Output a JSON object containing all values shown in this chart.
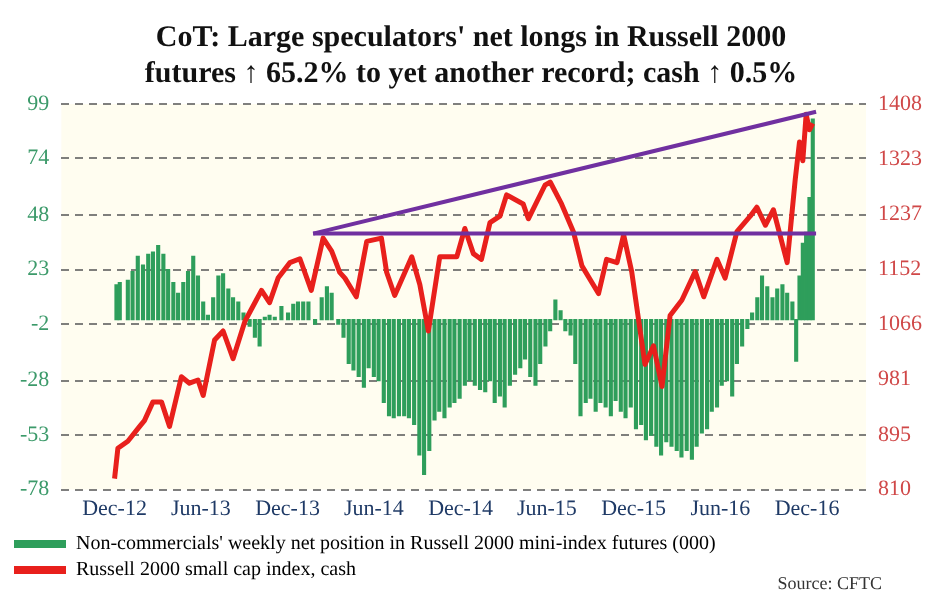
{
  "chart_data": {
    "type": "bar",
    "title": "CoT: Large speculators' net longs in Russell 2000 futures ↑ 65.2% to yet another record; cash ↑ 0.5%",
    "annotations": [
      "Source: CFTC"
    ],
    "xlim": [
      "2012-11-13",
      "2016-12-31"
    ],
    "xticks": [
      {
        "value": "2012-12-01",
        "label": "Dec-12"
      },
      {
        "value": "2013-06-01",
        "label": "Jun-13"
      },
      {
        "value": "2013-12-01",
        "label": "Dec-13"
      },
      {
        "value": "2014-06-01",
        "label": "Jun-14"
      },
      {
        "value": "2014-12-01",
        "label": "Dec-14"
      },
      {
        "value": "2015-06-01",
        "label": "Jun-15"
      },
      {
        "value": "2015-12-01",
        "label": "Dec-15"
      },
      {
        "value": "2016-06-01",
        "label": "Jun-16"
      },
      {
        "value": "2016-12-01",
        "label": "Dec-16"
      }
    ],
    "ylim": [
      -78,
      99
    ],
    "yticks": [
      -78,
      -53,
      -28,
      -2,
      23,
      48,
      74,
      99
    ],
    "y2lim": [
      810,
      1408
    ],
    "y2ticks": [
      810,
      895,
      981,
      1066,
      1152,
      1237,
      1323,
      1408
    ],
    "grid": "y",
    "legend": "bottom left",
    "series": [
      {
        "name": "Non-commercials' weekly net position in Russell 2000 mini-index futures (000)",
        "color": "#2e9e5b",
        "axis": "y",
        "x": [
          "2012-12-05",
          "2012-12-12",
          "2012-12-29",
          "2013-01-08",
          "2013-01-19",
          "2013-01-30",
          "2013-02-10",
          "2013-02-20",
          "2013-03-03",
          "2013-03-14",
          "2013-03-24",
          "2013-04-04",
          "2013-04-14",
          "2013-04-25",
          "2013-05-05",
          "2013-05-16",
          "2013-05-26",
          "2013-06-06",
          "2013-06-16",
          "2013-06-27",
          "2013-07-08",
          "2013-07-18",
          "2013-07-29",
          "2013-08-08",
          "2013-08-19",
          "2013-08-30",
          "2013-09-12",
          "2013-09-23",
          "2013-10-03",
          "2013-10-14",
          "2013-10-24",
          "2013-11-04",
          "2013-11-18",
          "2013-12-02",
          "2013-12-13",
          "2013-12-23",
          "2014-01-03",
          "2014-01-14",
          "2014-01-28",
          "2014-02-11",
          "2014-02-22",
          "2014-03-04",
          "2014-03-18",
          "2014-03-29",
          "2014-04-09",
          "2014-04-19",
          "2014-04-30",
          "2014-05-11",
          "2014-05-21",
          "2014-06-01",
          "2014-06-11",
          "2014-06-22",
          "2014-07-03",
          "2014-07-13",
          "2014-07-24",
          "2014-08-04",
          "2014-08-14",
          "2014-08-25",
          "2014-09-05",
          "2014-09-15",
          "2014-09-26",
          "2014-10-07",
          "2014-10-17",
          "2014-10-28",
          "2014-11-08",
          "2014-11-18",
          "2014-11-29",
          "2014-12-10",
          "2014-12-20",
          "2014-12-31",
          "2015-01-11",
          "2015-01-22",
          "2015-02-01",
          "2015-02-11",
          "2015-02-22",
          "2015-03-04",
          "2015-03-15",
          "2015-03-26",
          "2015-04-06",
          "2015-04-16",
          "2015-04-27",
          "2015-05-08",
          "2015-05-18",
          "2015-05-29",
          "2015-06-08",
          "2015-06-19",
          "2015-06-30",
          "2015-07-10",
          "2015-07-21",
          "2015-07-31",
          "2015-08-11",
          "2015-08-22",
          "2015-09-01",
          "2015-09-12",
          "2015-09-22",
          "2015-10-03",
          "2015-10-14",
          "2015-10-24",
          "2015-11-04",
          "2015-11-14",
          "2015-11-25",
          "2015-12-06",
          "2015-12-17",
          "2015-12-27",
          "2016-01-07",
          "2016-01-18",
          "2016-01-28",
          "2016-02-08",
          "2016-02-19",
          "2016-03-01",
          "2016-03-11",
          "2016-03-22",
          "2016-04-02",
          "2016-04-12",
          "2016-04-23",
          "2016-05-04",
          "2016-05-14",
          "2016-05-25",
          "2016-06-04",
          "2016-06-15",
          "2016-06-26",
          "2016-07-06",
          "2016-07-17",
          "2016-07-28",
          "2016-08-07",
          "2016-08-18",
          "2016-08-28",
          "2016-09-08",
          "2016-09-19",
          "2016-09-29",
          "2016-10-10",
          "2016-10-20",
          "2016-10-31",
          "2016-11-08",
          "2016-11-15",
          "2016-11-22",
          "2016-11-29",
          "2016-12-06",
          "2016-12-13"
        ],
        "values": [
          16,
          17,
          18,
          22,
          29,
          25,
          30,
          31,
          34,
          30,
          23,
          17,
          12,
          17,
          22,
          29,
          20,
          8,
          2,
          10,
          20,
          21,
          14,
          10,
          8,
          3,
          -3,
          -8,
          -12,
          1,
          2,
          1,
          6,
          3,
          7,
          8,
          8,
          8,
          -2,
          10,
          15,
          12,
          -2,
          -8,
          -20,
          -23,
          -26,
          -31,
          -22,
          -26,
          -28,
          -38,
          -44,
          -45,
          -44,
          -44,
          -45,
          -48,
          -62,
          -71,
          -60,
          -46,
          -42,
          -45,
          -40,
          -38,
          -36,
          -30,
          -28,
          -30,
          -32,
          -33,
          -28,
          -38,
          -35,
          -40,
          -30,
          -25,
          -22,
          -18,
          -26,
          -30,
          -20,
          -12,
          -5,
          9,
          4,
          -5,
          -7,
          -20,
          -44,
          -38,
          -36,
          -42,
          -38,
          -40,
          -44,
          -37,
          -42,
          -45,
          -40,
          -50,
          -48,
          -55,
          -53,
          -58,
          -62,
          -56,
          -58,
          -60,
          -63,
          -60,
          -64,
          -58,
          -52,
          -50,
          -42,
          -40,
          -30,
          -28,
          -35,
          -20,
          -12,
          -4,
          3,
          10,
          20,
          15,
          10,
          14,
          16,
          12,
          8,
          -19,
          20,
          35,
          40,
          56,
          92
        ]
      },
      {
        "name": "Russell 2000 small cap index, cash",
        "type": "line",
        "color": "#e8201c",
        "axis": "y2",
        "x": [
          "2012-12-01",
          "2012-12-08",
          "2012-12-29",
          "2013-01-23",
          "2013-02-02",
          "2013-02-20",
          "2013-03-10",
          "2013-03-27",
          "2013-04-21",
          "2013-05-08",
          "2013-05-26",
          "2013-06-06",
          "2013-06-30",
          "2013-07-18",
          "2013-08-08",
          "2013-09-02",
          "2013-10-07",
          "2013-10-24",
          "2013-11-11",
          "2013-12-06",
          "2013-12-27",
          "2014-01-20",
          "2014-02-14",
          "2014-03-04",
          "2014-03-21",
          "2014-04-01",
          "2014-04-25",
          "2014-05-17",
          "2014-06-17",
          "2014-06-28",
          "2014-07-15",
          "2014-08-20",
          "2014-09-06",
          "2014-09-24",
          "2014-10-18",
          "2014-11-23",
          "2014-12-10",
          "2014-12-28",
          "2015-01-14",
          "2015-02-01",
          "2015-02-22",
          "2015-03-08",
          "2015-04-12",
          "2015-04-23",
          "2015-05-28",
          "2015-06-08",
          "2015-07-02",
          "2015-07-27",
          "2015-08-14",
          "2015-09-18",
          "2015-10-05",
          "2015-10-27",
          "2015-11-10",
          "2015-11-27",
          "2015-12-25",
          "2016-01-12",
          "2016-01-30",
          "2016-02-16",
          "2016-03-12",
          "2016-04-09",
          "2016-04-27",
          "2016-05-25",
          "2016-06-11",
          "2016-07-06",
          "2016-08-03",
          "2016-08-17",
          "2016-09-04",
          "2016-09-21",
          "2016-10-20",
          "2016-11-06",
          "2016-11-15",
          "2016-11-22",
          "2016-11-29",
          "2016-12-06",
          "2016-12-13"
        ],
        "values": [
          827,
          874,
          885,
          908,
          917,
          946,
          946,
          908,
          985,
          975,
          980,
          956,
          1042,
          1056,
          1013,
          1071,
          1119,
          1100,
          1138,
          1162,
          1168,
          1119,
          1200,
          1180,
          1147,
          1138,
          1109,
          1195,
          1200,
          1147,
          1111,
          1171,
          1128,
          1056,
          1171,
          1171,
          1215,
          1176,
          1167,
          1224,
          1234,
          1267,
          1253,
          1230,
          1282,
          1287,
          1253,
          1210,
          1157,
          1114,
          1167,
          1162,
          1205,
          1148,
          1004,
          1033,
          970,
          1080,
          1104,
          1148,
          1109,
          1167,
          1138,
          1210,
          1234,
          1248,
          1220,
          1244,
          1162,
          1291,
          1349,
          1320,
          1392,
          1368,
          1378
        ]
      },
      {
        "type": "line",
        "color": "#7030a0",
        "axis": "y2",
        "x": [
          "2014-01-24",
          "2016-12-20"
        ],
        "values": [
          1207,
          1396
        ]
      },
      {
        "type": "line",
        "color": "#7030a0",
        "axis": "y2",
        "x": [
          "2014-01-24",
          "2016-12-20"
        ],
        "values": [
          1207,
          1207
        ]
      }
    ]
  }
}
